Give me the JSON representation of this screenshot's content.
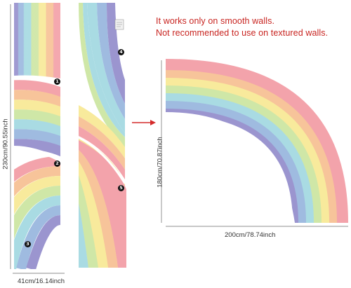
{
  "notices": [
    "It works only on smooth walls.",
    "Not recommended to use on textured walls."
  ],
  "dimensions": {
    "left_height": "230cm/90.55inch",
    "left_width": "41cm/16.14inch",
    "right_height": "180cm/70.87inch",
    "right_width": "200cm/78.74inch"
  },
  "panel_numbers": [
    "1",
    "2",
    "3",
    "4",
    "5"
  ],
  "colors": {
    "red": "#f3a3ab",
    "orange": "#f7c49a",
    "yellow": "#f8ea9c",
    "green": "#cfe7a7",
    "cyan": "#a9dbe3",
    "blue": "#9fbbe0",
    "purple": "#9b95cf",
    "notice": "#c82420",
    "arrow": "#d42a2a"
  }
}
